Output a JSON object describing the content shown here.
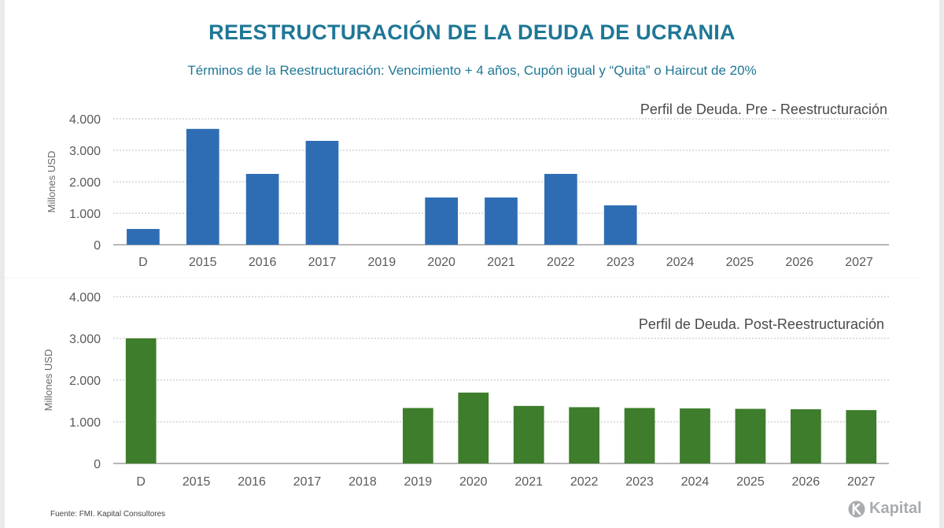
{
  "header": {
    "title": "REESTRUCTURACIÓN DE LA DEUDA DE UCRANIA",
    "subtitle": "Términos de la Reestructuración: Vencimiento + 4 años, Cupón igual y “Quita” o Haircut de 20%"
  },
  "footer": {
    "source": "Fuente: FMI. Kapital Consultores",
    "brand": "Kapital"
  },
  "colors": {
    "pre": "#2e6db4",
    "post": "#3e7d2b",
    "axis_text": "#5a5a5a",
    "grid": "#bdbdbd"
  },
  "chart_data": [
    {
      "type": "bar",
      "title": "Perfil de Deuda. Pre - Reestructuración",
      "xlabel": "",
      "ylabel": "Millones USD",
      "ylim": [
        0,
        4000
      ],
      "yticks": [
        0,
        1000,
        2000,
        3000,
        4000
      ],
      "ytick_labels": [
        "0",
        "1.000",
        "2.000",
        "3.000",
        "4.000"
      ],
      "grid": true,
      "categories": [
        "D",
        "2015",
        "2016",
        "2017",
        "2019",
        "2020",
        "2021",
        "2022",
        "2023",
        "2024",
        "2025",
        "2026",
        "2027"
      ],
      "values": [
        500,
        3680,
        2250,
        3300,
        0,
        1500,
        1500,
        2250,
        1250,
        0,
        0,
        0,
        0
      ]
    },
    {
      "type": "bar",
      "title": "Perfil de Deuda. Post-Reestructuración",
      "xlabel": "",
      "ylabel": "Millones USD",
      "ylim": [
        0,
        4000
      ],
      "yticks": [
        0,
        1000,
        2000,
        3000,
        4000
      ],
      "ytick_labels": [
        "0",
        "1.000",
        "2.000",
        "3.000",
        "4.000"
      ],
      "grid": true,
      "categories": [
        "D",
        "2015",
        "2016",
        "2017",
        "2018",
        "2019",
        "2020",
        "2021",
        "2022",
        "2023",
        "2024",
        "2025",
        "2026",
        "2027"
      ],
      "values": [
        3000,
        0,
        0,
        0,
        0,
        1330,
        1700,
        1380,
        1350,
        1330,
        1320,
        1310,
        1300,
        1280
      ]
    }
  ]
}
